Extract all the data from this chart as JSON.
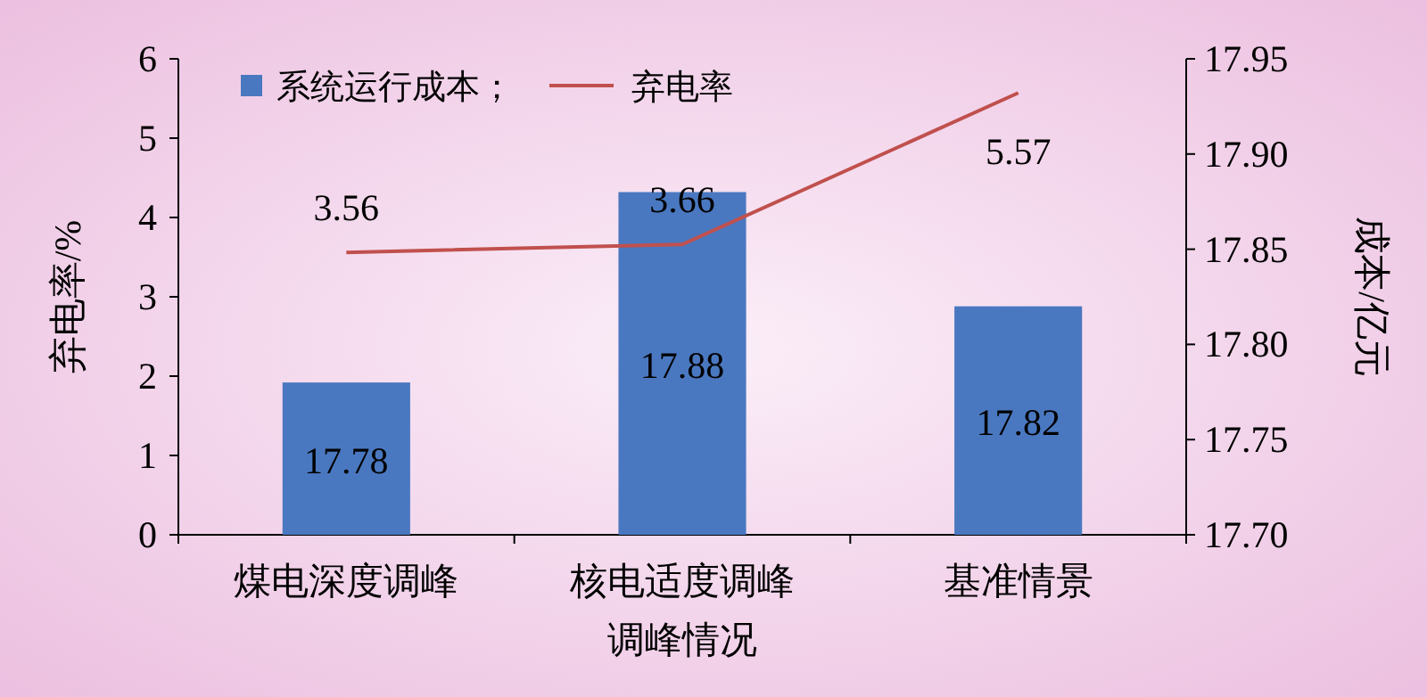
{
  "chart_data": {
    "type": "bar",
    "xlabel": "调峰情况",
    "ylabel": "弃电率/%",
    "y2label": "成本/亿元",
    "categories": [
      "煤电深度调峰",
      "核电适度调峰",
      "基准情景"
    ],
    "series": [
      {
        "name": "系统运行成本；",
        "axis": "y2",
        "color": "#4a78c0",
        "values": [
          17.78,
          17.88,
          17.82
        ]
      },
      {
        "name": "弃电率",
        "type": "line",
        "axis": "y",
        "color": "#c0504d",
        "values": [
          3.56,
          3.66,
          5.57
        ]
      }
    ],
    "ylim": [
      0,
      6
    ],
    "yticks": [
      0,
      1,
      2,
      3,
      4,
      5,
      6
    ],
    "y2lim": [
      17.7,
      17.95
    ],
    "y2ticks": [
      {
        "value": 17.7,
        "label": "17.70"
      },
      {
        "value": 17.75,
        "label": "17.75"
      },
      {
        "value": 17.8,
        "label": "17.80"
      },
      {
        "value": 17.85,
        "label": "17.85"
      },
      {
        "value": 17.9,
        "label": "17.90"
      },
      {
        "value": 17.95,
        "label": "17.95"
      }
    ],
    "data_labels": true,
    "legend": "top left",
    "grid": false
  }
}
